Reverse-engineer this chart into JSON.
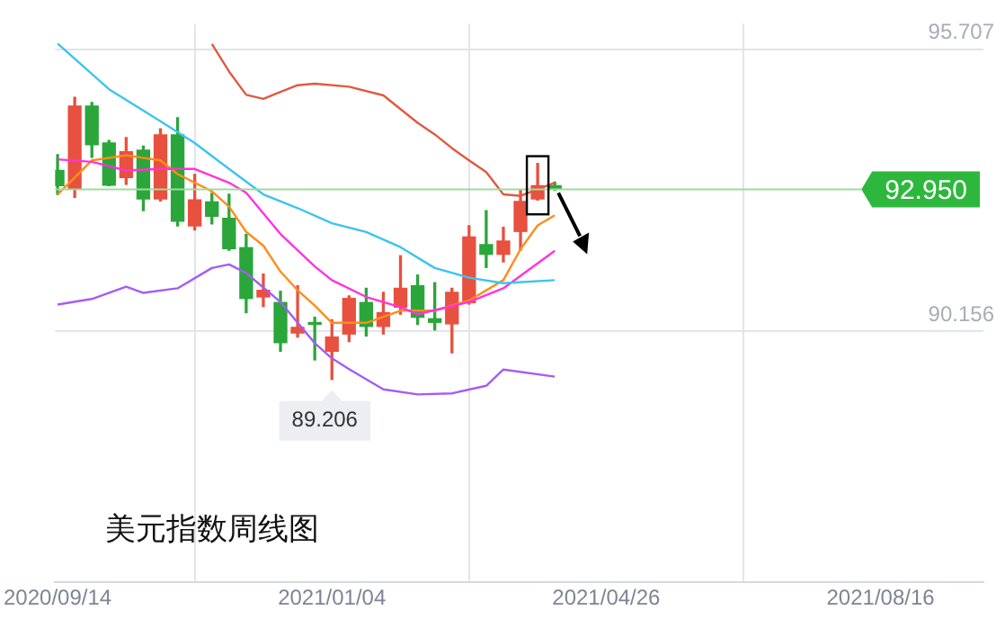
{
  "chart_data": {
    "type": "candlestick",
    "title": "美元指数周线图",
    "x": [
      "2020-09-14",
      "2020-09-21",
      "2020-09-28",
      "2020-10-05",
      "2020-10-12",
      "2020-10-19",
      "2020-10-26",
      "2020-11-02",
      "2020-11-09",
      "2020-11-16",
      "2020-11-23",
      "2020-11-30",
      "2020-12-07",
      "2020-12-14",
      "2020-12-21",
      "2020-12-28",
      "2021-01-04",
      "2021-01-11",
      "2021-01-18",
      "2021-01-25",
      "2021-02-01",
      "2021-02-08",
      "2021-02-15",
      "2021-02-22",
      "2021-03-01",
      "2021-03-08",
      "2021-03-15",
      "2021-03-22",
      "2021-03-29",
      "2021-04-05"
    ],
    "ohlc": [
      [
        93.32,
        93.63,
        92.85,
        93.02
      ],
      [
        92.96,
        94.76,
        92.79,
        94.59
      ],
      [
        94.59,
        94.66,
        93.58,
        93.83
      ],
      [
        93.86,
        93.91,
        93.02,
        93.03
      ],
      [
        93.18,
        93.97,
        93.05,
        93.69
      ],
      [
        93.72,
        93.8,
        92.53,
        92.76
      ],
      [
        92.76,
        94.14,
        92.72,
        94.02
      ],
      [
        94.02,
        94.36,
        92.23,
        92.32
      ],
      [
        92.23,
        93.24,
        92.15,
        92.74
      ],
      [
        92.7,
        92.87,
        92.27,
        92.42
      ],
      [
        92.38,
        92.85,
        91.75,
        91.78
      ],
      [
        91.8,
        92.06,
        90.52,
        90.8
      ],
      [
        90.83,
        91.28,
        90.64,
        90.96
      ],
      [
        90.72,
        90.94,
        89.76,
        89.93
      ],
      [
        90.12,
        91.05,
        90.04,
        90.23
      ],
      [
        90.29,
        90.43,
        89.59,
        90.29
      ],
      [
        89.76,
        90.38,
        89.206,
        90.04
      ],
      [
        90.1,
        90.85,
        89.95,
        90.8
      ],
      [
        90.72,
        91.0,
        90.06,
        90.25
      ],
      [
        90.25,
        90.92,
        90.1,
        90.52
      ],
      [
        90.63,
        91.64,
        90.49,
        91.0
      ],
      [
        91.05,
        91.26,
        90.29,
        90.43
      ],
      [
        90.4,
        91.11,
        90.18,
        90.33
      ],
      [
        90.3,
        91.0,
        89.73,
        90.92
      ],
      [
        90.72,
        92.23,
        90.69,
        92.01
      ],
      [
        91.86,
        92.53,
        91.41,
        91.67
      ],
      [
        91.67,
        92.2,
        91.52,
        91.93
      ],
      [
        92.12,
        92.94,
        91.75,
        92.71
      ],
      [
        92.76,
        93.46,
        92.74,
        93.02
      ],
      [
        93.02,
        93.09,
        92.93,
        92.95
      ]
    ],
    "colors": [
      "#2aa63a",
      "#e8503f",
      "#2aa63a",
      "#2aa63a",
      "#e8503f",
      "#2aa63a",
      "#e8503f",
      "#2aa63a",
      "#e8503f",
      "#2aa63a",
      "#2aa63a",
      "#2aa63a",
      "#e8503f",
      "#2aa63a",
      "#e8503f",
      "#2aa63a",
      "#e8503f",
      "#e8503f",
      "#2aa63a",
      "#e8503f",
      "#e8503f",
      "#2aa63a",
      "#2aa63a",
      "#e8503f",
      "#e8503f",
      "#2aa63a",
      "#e8503f",
      "#e8503f",
      "#e8503f",
      "#2aa63a"
    ],
    "series": [
      {
        "type": "line",
        "color": "#e05a40",
        "x": [
          "2020-11-16",
          "2020-11-23",
          "2020-11-30",
          "2020-12-07",
          "2020-12-14",
          "2020-12-21",
          "2020-12-28",
          "2021-01-11",
          "2021-01-25",
          "2021-02-08",
          "2021-02-15",
          "2021-02-22",
          "2021-03-01",
          "2021-03-08",
          "2021-03-15",
          "2021-03-22",
          "2021-03-29",
          "2021-04-05"
        ],
        "values": [
          95.81,
          95.27,
          94.81,
          94.73,
          94.87,
          95.0,
          95.03,
          94.97,
          94.8,
          94.26,
          94.03,
          93.76,
          93.52,
          93.29,
          92.85,
          92.82,
          92.95,
          93.08
        ]
      },
      {
        "type": "line",
        "color": "#3cc4ee",
        "x": [
          "2020-09-14",
          "2020-10-05",
          "2020-10-26",
          "2020-11-09",
          "2020-11-23",
          "2020-12-07",
          "2020-12-21",
          "2021-01-04",
          "2021-01-18",
          "2021-02-01",
          "2021-02-15",
          "2021-03-01",
          "2021-03-15",
          "2021-04-05"
        ],
        "values": [
          95.82,
          94.92,
          94.29,
          93.86,
          93.35,
          92.85,
          92.58,
          92.28,
          92.11,
          91.81,
          91.4,
          91.21,
          91.1,
          91.16
        ]
      },
      {
        "type": "line",
        "color": "#ff33dd",
        "x": [
          "2020-09-14",
          "2020-09-28",
          "2020-10-12",
          "2020-10-26",
          "2020-11-09",
          "2020-11-23",
          "2020-11-30",
          "2020-12-14",
          "2020-12-28",
          "2021-01-04",
          "2021-01-18",
          "2021-02-01",
          "2021-02-08",
          "2021-03-01",
          "2021-03-15",
          "2021-04-05"
        ],
        "values": [
          93.54,
          93.49,
          93.32,
          93.35,
          93.35,
          93.08,
          92.88,
          92.07,
          91.43,
          91.16,
          90.83,
          90.63,
          90.49,
          90.73,
          91.0,
          91.74
        ]
      },
      {
        "type": "line",
        "color": "#ff8c1a",
        "x": [
          "2020-09-14",
          "2020-09-21",
          "2020-09-28",
          "2020-10-12",
          "2020-10-26",
          "2020-11-02",
          "2020-11-16",
          "2020-11-23",
          "2020-11-30",
          "2020-12-07",
          "2020-12-14",
          "2020-12-21",
          "2020-12-28",
          "2021-01-04",
          "2021-01-18",
          "2021-02-01",
          "2021-02-15",
          "2021-03-01",
          "2021-03-15",
          "2021-03-22",
          "2021-03-29",
          "2021-04-05"
        ],
        "values": [
          92.85,
          93.18,
          93.52,
          93.62,
          93.52,
          93.25,
          92.91,
          92.61,
          92.11,
          91.84,
          91.33,
          90.96,
          90.66,
          90.32,
          90.32,
          90.56,
          90.56,
          90.76,
          91.16,
          91.77,
          92.24,
          92.44
        ]
      },
      {
        "type": "line",
        "color": "#a45cf5",
        "x": [
          "2020-09-14",
          "2020-09-28",
          "2020-10-12",
          "2020-10-19",
          "2020-11-02",
          "2020-11-16",
          "2020-11-23",
          "2020-11-30",
          "2020-12-14",
          "2020-12-28",
          "2021-01-04",
          "2021-01-11",
          "2021-01-25",
          "2021-02-08",
          "2021-02-22",
          "2021-03-08",
          "2021-03-15",
          "2021-04-05"
        ],
        "values": [
          90.68,
          90.79,
          91.03,
          90.91,
          91.0,
          91.4,
          91.47,
          91.3,
          90.73,
          89.92,
          89.62,
          89.41,
          89.01,
          88.91,
          88.93,
          89.08,
          89.4,
          89.26
        ]
      }
    ],
    "xlim": [
      "2020-09-13",
      "2021-09-27"
    ],
    "xticks": [
      {
        "value": "2020-09-14",
        "label": "2020/09/14"
      },
      {
        "value": "2021-01-04",
        "label": "2021/01/04"
      },
      {
        "value": "2021-04-26",
        "label": "2021/04/26"
      },
      {
        "value": "2021-08-16",
        "label": "2021/08/16"
      }
    ],
    "ylim": [
      85.21,
      96.21
    ],
    "yticks": [
      95.707,
      90.156
    ],
    "grid": true,
    "ref_lines": [
      {
        "axis": "y",
        "value": 92.95,
        "label": "92.950",
        "color": "#9ddc9d"
      }
    ],
    "annotations": [
      {
        "text": "89.206",
        "x": "2021-01-04",
        "y": 89.206
      }
    ]
  }
}
